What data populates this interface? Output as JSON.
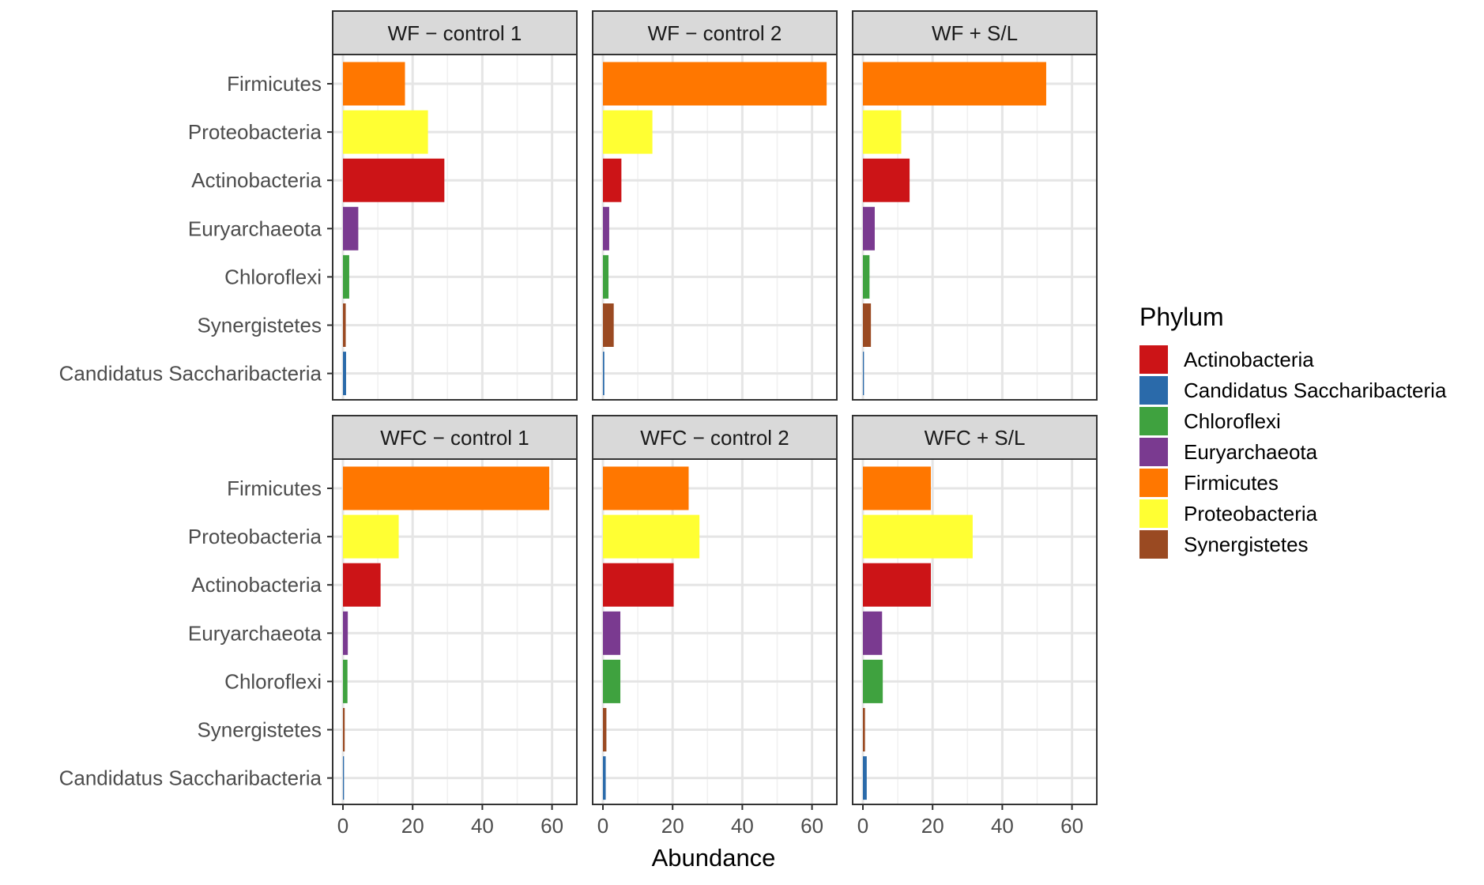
{
  "chart_data": {
    "type": "bar",
    "orientation": "horizontal",
    "xlabel": "Abundance",
    "ylabel": "",
    "xlim": [
      0,
      65
    ],
    "xticks": [
      0,
      20,
      40,
      60
    ],
    "grid": true,
    "legend_title": "Phylum",
    "legend_position": "right",
    "categories": [
      "Firmicutes",
      "Proteobacteria",
      "Actinobacteria",
      "Euryarchaeota",
      "Chloroflexi",
      "Synergistetes",
      "Candidatus Saccharibacteria"
    ],
    "colors": {
      "Actinobacteria": "#cc1417",
      "Candidatus Saccharibacteria": "#2a6aaa",
      "Chloroflexi": "#3fa23f",
      "Euryarchaeota": "#7a3a90",
      "Firmicutes": "#ff7700",
      "Proteobacteria": "#ffff33",
      "Synergistetes": "#9a4a22"
    },
    "legend": [
      "Actinobacteria",
      "Candidatus Saccharibacteria",
      "Chloroflexi",
      "Euryarchaeota",
      "Firmicutes",
      "Proteobacteria",
      "Synergistetes"
    ],
    "panels": [
      {
        "title": "WF − control 1",
        "values": [
          17.8,
          24.4,
          29.1,
          4.4,
          1.8,
          0.8,
          0.9
        ]
      },
      {
        "title": "WF − control 2",
        "values": [
          64.2,
          14.2,
          5.3,
          1.8,
          1.6,
          3.1,
          0.4
        ]
      },
      {
        "title": "WF + S/L",
        "values": [
          52.6,
          11.0,
          13.4,
          3.4,
          1.9,
          2.3,
          0.3
        ]
      },
      {
        "title": "WFC − control 1",
        "values": [
          59.2,
          16.0,
          10.8,
          1.4,
          1.3,
          0.5,
          0.3
        ]
      },
      {
        "title": "WFC − control 2",
        "values": [
          24.6,
          27.7,
          20.3,
          5.0,
          5.0,
          1.0,
          0.8
        ]
      },
      {
        "title": "WFC + S/L",
        "values": [
          19.5,
          31.5,
          19.5,
          5.5,
          5.7,
          0.6,
          1.1
        ]
      }
    ]
  }
}
